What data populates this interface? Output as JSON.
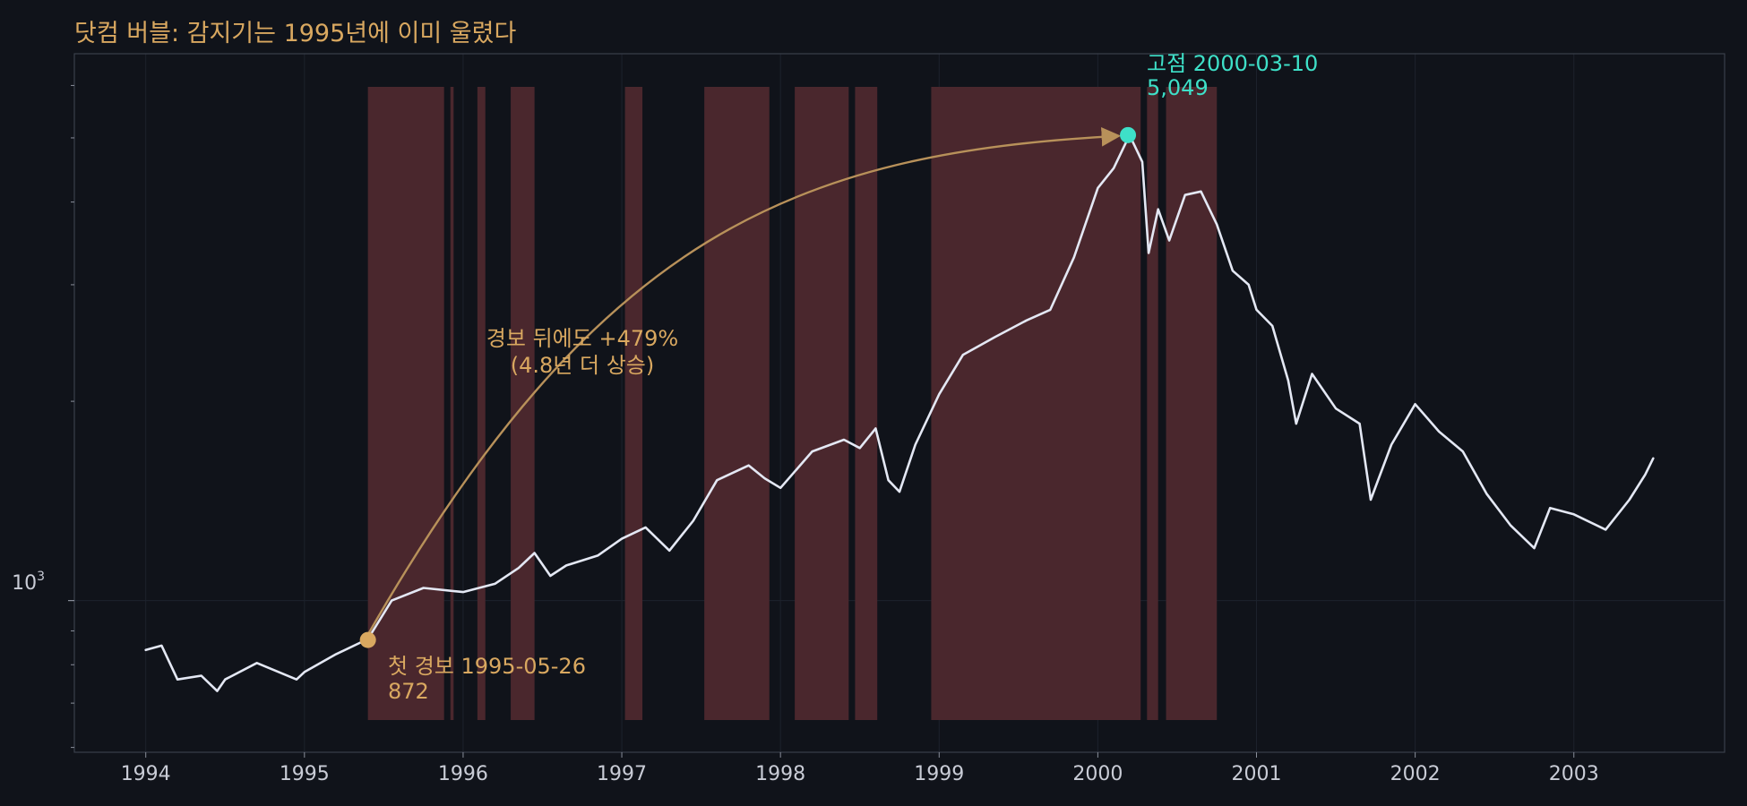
{
  "chart_data": {
    "type": "line",
    "title": "닷컴 버블: 감지기는 1995년에 이미 울렸다",
    "yscale": "log",
    "ylim": [
      590,
      6700
    ],
    "xlim": [
      1993.55,
      2003.95
    ],
    "xlabel": "",
    "ylabel": "",
    "x_ticks": [
      "1994",
      "1995",
      "1996",
      "1997",
      "1998",
      "1999",
      "2000",
      "2001",
      "2002",
      "2003"
    ],
    "y_major_tick_labels": [
      "10",
      "3"
    ],
    "grid": true,
    "colors": {
      "background": "#10131a",
      "line": "#e4e8f4",
      "alarm_band": "#4a272d",
      "accent_gold": "#d9a860",
      "accent_teal": "#3ee0c8",
      "tick_text": "#c9ccd6",
      "spine": "#3a3f4b"
    },
    "series": [
      {
        "x": [
          1994.0,
          1994.1,
          1994.2,
          1994.35,
          1994.45,
          1994.5,
          1994.7,
          1994.95,
          1995.0,
          1995.2,
          1995.4,
          1995.55,
          1995.75,
          1996.0,
          1996.2,
          1996.35,
          1996.45,
          1996.55,
          1996.65,
          1996.85,
          1997.0,
          1997.15,
          1997.3,
          1997.45,
          1997.6,
          1997.8,
          1997.9,
          1998.0,
          1998.2,
          1998.4,
          1998.5,
          1998.6,
          1998.68,
          1998.75,
          1998.85,
          1999.0,
          1999.15,
          1999.35,
          1999.55,
          1999.7,
          1999.85,
          2000.0,
          2000.1,
          2000.2,
          2000.28,
          2000.32,
          2000.38,
          2000.45,
          2000.55,
          2000.65,
          2000.75,
          2000.85,
          2000.95,
          2001.0,
          2001.1,
          2001.2,
          2001.25,
          2001.35,
          2001.5,
          2001.65,
          2001.72,
          2001.85,
          2002.0,
          2002.15,
          2002.3,
          2002.45,
          2002.6,
          2002.75,
          2002.85,
          2003.0,
          2003.2,
          2003.35,
          2003.45,
          2003.5
        ],
        "y": [
          842,
          855,
          760,
          770,
          730,
          760,
          805,
          760,
          780,
          830,
          875,
          1000,
          1045,
          1030,
          1060,
          1120,
          1180,
          1090,
          1130,
          1170,
          1240,
          1290,
          1190,
          1320,
          1520,
          1600,
          1530,
          1480,
          1680,
          1750,
          1700,
          1820,
          1520,
          1460,
          1720,
          2050,
          2350,
          2500,
          2650,
          2750,
          3300,
          4200,
          4500,
          5049,
          4600,
          3350,
          3900,
          3500,
          4100,
          4150,
          3700,
          3150,
          3000,
          2750,
          2600,
          2150,
          1850,
          2200,
          1950,
          1850,
          1420,
          1720,
          1980,
          1800,
          1680,
          1450,
          1300,
          1200,
          1380,
          1350,
          1280,
          1420,
          1550,
          1640
        ]
      }
    ],
    "alarm_periods": [
      [
        1995.4,
        1995.88
      ],
      [
        1995.92,
        1995.94
      ],
      [
        1996.09,
        1996.14
      ],
      [
        1996.3,
        1996.45
      ],
      [
        1997.02,
        1997.13
      ],
      [
        1997.52,
        1997.93
      ],
      [
        1998.09,
        1998.43
      ],
      [
        1998.47,
        1998.61
      ],
      [
        1998.95,
        2000.27
      ],
      [
        2000.31,
        2000.38
      ],
      [
        2000.43,
        2000.75
      ]
    ],
    "annotations": {
      "first_alarm": {
        "label": "첫 경보 1995-05-26",
        "value_label": "872",
        "x": 1995.4,
        "y": 872
      },
      "peak": {
        "label": "고점 2000-03-10",
        "value_label": "5,049",
        "x": 2000.19,
        "y": 5049
      },
      "gain": {
        "line1": "경보 뒤에도 +479%",
        "line2": "(4.8년 더 상승)"
      }
    }
  }
}
